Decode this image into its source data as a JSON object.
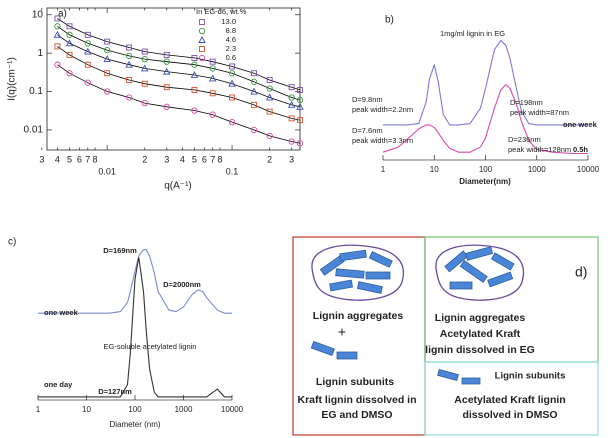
{
  "chart_data": [
    {
      "type": "line",
      "label": "a)",
      "xlabel": "q(A⁻¹)",
      "ylabel": "I(q)(cm⁻¹)",
      "xlog": true,
      "ylog": true,
      "xlim": [
        0.0033,
        0.35
      ],
      "ylim": [
        0.003,
        15
      ],
      "xticks": [
        {
          "value": 0.003,
          "label": "3"
        },
        {
          "value": 0.004,
          "label": "4"
        },
        {
          "value": 0.005,
          "label": "5"
        },
        {
          "value": 0.006,
          "label": "6"
        },
        {
          "value": 0.007,
          "label": "7"
        },
        {
          "value": 0.008,
          "label": "8"
        },
        0.01,
        {
          "value": 0.02,
          "label": "2"
        },
        {
          "value": 0.03,
          "label": "3"
        },
        {
          "value": 0.04,
          "label": "4"
        },
        {
          "value": 0.05,
          "label": "5"
        },
        {
          "value": 0.06,
          "label": "6"
        },
        {
          "value": 0.07,
          "label": "7"
        },
        {
          "value": 0.08,
          "label": "8"
        },
        0.1,
        {
          "value": 0.2,
          "label": "2"
        },
        {
          "value": 0.3,
          "label": "3"
        }
      ],
      "yticks": [
        0.01,
        0.1,
        1,
        10
      ],
      "legend_title": "In EG-d6, wt.%",
      "fit_color": "#000000",
      "x": [
        0.004,
        0.005,
        0.007,
        0.01,
        0.015,
        0.02,
        0.03,
        0.05,
        0.07,
        0.1,
        0.15,
        0.2,
        0.3,
        0.35
      ],
      "series": [
        {
          "name": "13.0",
          "color": "#7b4fb0",
          "marker": "square",
          "values": [
            8,
            5,
            3,
            2,
            1.4,
            1.1,
            0.9,
            0.75,
            0.6,
            0.45,
            0.3,
            0.2,
            0.13,
            0.11
          ]
        },
        {
          "name": "8.8",
          "color": "#3a9a3a",
          "marker": "circle",
          "values": [
            5,
            3,
            1.8,
            1.2,
            0.85,
            0.7,
            0.6,
            0.5,
            0.4,
            0.3,
            0.18,
            0.12,
            0.07,
            0.06
          ]
        },
        {
          "name": "4.6",
          "color": "#3b4fb0",
          "marker": "triangle",
          "values": [
            3,
            1.8,
            1.1,
            0.7,
            0.5,
            0.4,
            0.33,
            0.27,
            0.22,
            0.16,
            0.1,
            0.07,
            0.045,
            0.04
          ]
        },
        {
          "name": "2.3",
          "color": "#d9502a",
          "marker": "square",
          "values": [
            1.5,
            0.9,
            0.5,
            0.3,
            0.2,
            0.16,
            0.13,
            0.11,
            0.09,
            0.07,
            0.045,
            0.03,
            0.02,
            0.018
          ]
        },
        {
          "name": "0.6",
          "color": "#d94aa8",
          "marker": "circle",
          "values": [
            0.5,
            0.3,
            0.17,
            0.1,
            0.07,
            0.05,
            0.04,
            0.032,
            0.025,
            0.016,
            0.01,
            0.007,
            0.005,
            0.0045
          ]
        }
      ]
    },
    {
      "type": "line",
      "label": "b)",
      "xlabel": "Diameter(nm)",
      "xlog": true,
      "xlim": [
        1,
        10000
      ],
      "ylim": [
        0,
        1
      ],
      "xticks": [
        1,
        10,
        100,
        1000,
        10000
      ],
      "annotations": [
        "1mg/ml lignin in EG",
        "D=9.8nm",
        "peak width=2.2nm",
        "D=198nm",
        "peak width=87nm",
        "D=7.6nm",
        "peak width=3.3nm",
        "D=236nm",
        "peak width=128nm"
      ],
      "x": [
        1,
        2,
        3,
        5,
        7,
        8,
        10,
        12,
        15,
        20,
        30,
        50,
        80,
        100,
        150,
        200,
        250,
        300,
        400,
        500,
        700,
        1000,
        2000,
        5000,
        10000
      ],
      "series": [
        {
          "name": "one week",
          "color": "#7b7bd6",
          "values": [
            0.27,
            0.27,
            0.27,
            0.28,
            0.45,
            0.62,
            0.73,
            0.6,
            0.35,
            0.27,
            0.27,
            0.28,
            0.4,
            0.55,
            0.85,
            0.92,
            0.88,
            0.78,
            0.55,
            0.38,
            0.28,
            0.27,
            0.27,
            0.27,
            0.27
          ]
        },
        {
          "name": "0.5h",
          "color": "#d84aa8",
          "values": [
            0.06,
            0.1,
            0.16,
            0.24,
            0.27,
            0.27,
            0.25,
            0.21,
            0.15,
            0.09,
            0.06,
            0.06,
            0.1,
            0.17,
            0.4,
            0.54,
            0.58,
            0.55,
            0.43,
            0.3,
            0.15,
            0.08,
            0.06,
            0.05,
            0.05
          ]
        }
      ]
    },
    {
      "type": "line",
      "label": "c)",
      "xlabel": "Diameter (nm)",
      "xlog": true,
      "xlim": [
        1,
        10000
      ],
      "ylim": [
        0,
        1
      ],
      "xticks": [
        1,
        10,
        100,
        1000,
        10000
      ],
      "annotations": [
        "D=169nm",
        "D=2000nm",
        "EG-soluble acetylated lignin",
        "D=127nm"
      ],
      "x": [
        1,
        10,
        20,
        30,
        50,
        70,
        80,
        100,
        120,
        150,
        170,
        200,
        250,
        300,
        500,
        700,
        1000,
        1500,
        2000,
        2500,
        3000,
        5000,
        7000,
        10000
      ],
      "series": [
        {
          "name": "one week",
          "color": "#7b8bd0",
          "values": [
            0.56,
            0.56,
            0.56,
            0.56,
            0.57,
            0.63,
            0.7,
            0.83,
            0.93,
            0.97,
            0.97,
            0.93,
            0.82,
            0.7,
            0.58,
            0.57,
            0.6,
            0.68,
            0.71,
            0.7,
            0.66,
            0.58,
            0.56,
            0.56
          ]
        },
        {
          "name": "one day",
          "color": "#333333",
          "values": [
            0.02,
            0.02,
            0.02,
            0.02,
            0.02,
            0.1,
            0.3,
            0.78,
            0.92,
            0.7,
            0.45,
            0.2,
            0.05,
            0.02,
            0.02,
            0.02,
            0.02,
            0.02,
            0.02,
            0.02,
            0.02,
            0.07,
            0.02,
            0.02
          ]
        }
      ]
    }
  ],
  "diagram": {
    "label": "d)",
    "left": {
      "aggregates": "Lignin aggregates",
      "plus": "+",
      "subunits": "Lignin subunits",
      "caption": [
        "Kraft lignin dissolved in",
        "EG and DMSO"
      ]
    },
    "top_right": {
      "aggregates": "Lignin aggregates",
      "caption": [
        "Acetylated Kraft",
        "lignin dissolved in EG"
      ]
    },
    "bottom_right": {
      "subunits": "Lignin subunits",
      "caption": [
        "Acetylated Kraft lignin",
        "dissolved in DMSO"
      ]
    }
  }
}
